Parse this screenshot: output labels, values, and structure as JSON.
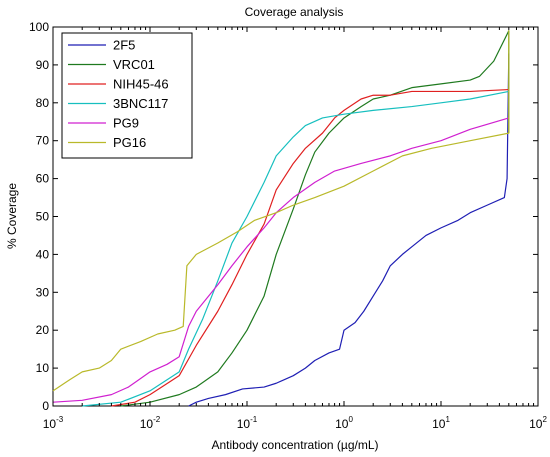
{
  "chart_data": {
    "type": "line",
    "title": "Coverage analysis",
    "xlabel": "Antibody concentration (µg/mL)",
    "ylabel": "% Coverage",
    "x_scale": "log",
    "xlim": [
      0.001,
      100
    ],
    "ylim": [
      0,
      100
    ],
    "x_ticks": [
      0.001,
      0.01,
      0.1,
      1,
      10,
      100
    ],
    "x_tick_labels": [
      {
        "base": "10",
        "exp": "-3"
      },
      {
        "base": "10",
        "exp": "-2"
      },
      {
        "base": "10",
        "exp": "-1"
      },
      {
        "base": "10",
        "exp": "0"
      },
      {
        "base": "10",
        "exp": "1"
      },
      {
        "base": "10",
        "exp": "2"
      }
    ],
    "y_ticks": [
      "0",
      "10",
      "20",
      "30",
      "40",
      "50",
      "60",
      "70",
      "80",
      "90",
      "100"
    ],
    "grid": false,
    "legend_position": "top-left",
    "series": [
      {
        "name": "2F5",
        "color": "#1f1fb4",
        "points": [
          [
            0.025,
            0
          ],
          [
            0.03,
            1
          ],
          [
            0.04,
            2
          ],
          [
            0.06,
            3
          ],
          [
            0.09,
            4.5
          ],
          [
            0.15,
            5
          ],
          [
            0.2,
            6
          ],
          [
            0.3,
            8
          ],
          [
            0.4,
            10
          ],
          [
            0.5,
            12
          ],
          [
            0.7,
            14
          ],
          [
            0.9,
            15
          ],
          [
            1.0,
            20
          ],
          [
            1.3,
            22
          ],
          [
            1.6,
            25
          ],
          [
            2.0,
            29
          ],
          [
            2.5,
            33
          ],
          [
            3.0,
            37
          ],
          [
            4.0,
            40
          ],
          [
            5.0,
            42
          ],
          [
            7.0,
            45
          ],
          [
            10,
            47
          ],
          [
            15,
            49
          ],
          [
            20,
            51
          ],
          [
            30,
            53
          ],
          [
            45,
            55
          ],
          [
            48,
            60
          ],
          [
            50,
            93
          ]
        ]
      },
      {
        "name": "VRC01",
        "color": "#1f7a1f",
        "points": [
          [
            0.005,
            0
          ],
          [
            0.01,
            1
          ],
          [
            0.02,
            3
          ],
          [
            0.03,
            5
          ],
          [
            0.05,
            9
          ],
          [
            0.07,
            14
          ],
          [
            0.1,
            20
          ],
          [
            0.15,
            29
          ],
          [
            0.2,
            40
          ],
          [
            0.3,
            52
          ],
          [
            0.4,
            61
          ],
          [
            0.5,
            67
          ],
          [
            0.7,
            72
          ],
          [
            1.0,
            76
          ],
          [
            1.5,
            79
          ],
          [
            2.0,
            81
          ],
          [
            3.0,
            82
          ],
          [
            5.0,
            84
          ],
          [
            10,
            85
          ],
          [
            20,
            86
          ],
          [
            25,
            87
          ],
          [
            35,
            91
          ],
          [
            50,
            99
          ],
          [
            50,
            72
          ]
        ]
      },
      {
        "name": "NIH45-46",
        "color": "#e02020",
        "points": [
          [
            0.004,
            0
          ],
          [
            0.007,
            1
          ],
          [
            0.01,
            3
          ],
          [
            0.02,
            8
          ],
          [
            0.03,
            16
          ],
          [
            0.05,
            25
          ],
          [
            0.07,
            32
          ],
          [
            0.1,
            40
          ],
          [
            0.15,
            48
          ],
          [
            0.2,
            57
          ],
          [
            0.3,
            64
          ],
          [
            0.4,
            68
          ],
          [
            0.6,
            72
          ],
          [
            0.8,
            76
          ],
          [
            1.0,
            78
          ],
          [
            1.5,
            81
          ],
          [
            2.0,
            82
          ],
          [
            3.0,
            82
          ],
          [
            5.0,
            83
          ],
          [
            10,
            83
          ],
          [
            20,
            83
          ],
          [
            50,
            83.5
          ]
        ]
      },
      {
        "name": "3BNC117",
        "color": "#17bfbf",
        "points": [
          [
            0.002,
            0
          ],
          [
            0.005,
            1
          ],
          [
            0.01,
            4
          ],
          [
            0.02,
            9
          ],
          [
            0.025,
            15
          ],
          [
            0.035,
            23
          ],
          [
            0.05,
            33
          ],
          [
            0.07,
            43
          ],
          [
            0.1,
            50
          ],
          [
            0.15,
            59
          ],
          [
            0.2,
            66
          ],
          [
            0.3,
            71
          ],
          [
            0.4,
            74
          ],
          [
            0.6,
            76
          ],
          [
            1.0,
            77
          ],
          [
            2.0,
            78
          ],
          [
            5.0,
            79
          ],
          [
            10,
            80
          ],
          [
            20,
            81
          ],
          [
            50,
            83
          ]
        ]
      },
      {
        "name": "PG9",
        "color": "#d020d0",
        "points": [
          [
            0.001,
            1
          ],
          [
            0.002,
            1.5
          ],
          [
            0.004,
            3
          ],
          [
            0.006,
            5
          ],
          [
            0.01,
            9
          ],
          [
            0.015,
            11
          ],
          [
            0.02,
            13
          ],
          [
            0.025,
            21
          ],
          [
            0.03,
            25
          ],
          [
            0.05,
            32
          ],
          [
            0.07,
            37
          ],
          [
            0.1,
            42
          ],
          [
            0.15,
            47
          ],
          [
            0.2,
            51
          ],
          [
            0.3,
            55
          ],
          [
            0.5,
            59
          ],
          [
            0.8,
            62
          ],
          [
            1.5,
            64
          ],
          [
            3.0,
            66
          ],
          [
            5.0,
            68
          ],
          [
            10,
            70
          ],
          [
            20,
            73
          ],
          [
            50,
            76
          ]
        ]
      },
      {
        "name": "PG16",
        "color": "#b9b92a",
        "points": [
          [
            0.001,
            4
          ],
          [
            0.0015,
            7
          ],
          [
            0.002,
            9
          ],
          [
            0.003,
            10
          ],
          [
            0.004,
            12
          ],
          [
            0.005,
            15
          ],
          [
            0.008,
            17
          ],
          [
            0.012,
            19
          ],
          [
            0.018,
            20
          ],
          [
            0.022,
            21
          ],
          [
            0.024,
            37
          ],
          [
            0.03,
            40
          ],
          [
            0.05,
            43
          ],
          [
            0.08,
            46
          ],
          [
            0.12,
            49
          ],
          [
            0.2,
            51
          ],
          [
            0.3,
            53
          ],
          [
            0.5,
            55
          ],
          [
            1.0,
            58
          ],
          [
            2.0,
            62
          ],
          [
            4.0,
            66
          ],
          [
            8.0,
            68
          ],
          [
            20,
            70
          ],
          [
            50,
            72
          ],
          [
            50,
            99
          ],
          [
            50,
            72
          ]
        ]
      }
    ]
  }
}
